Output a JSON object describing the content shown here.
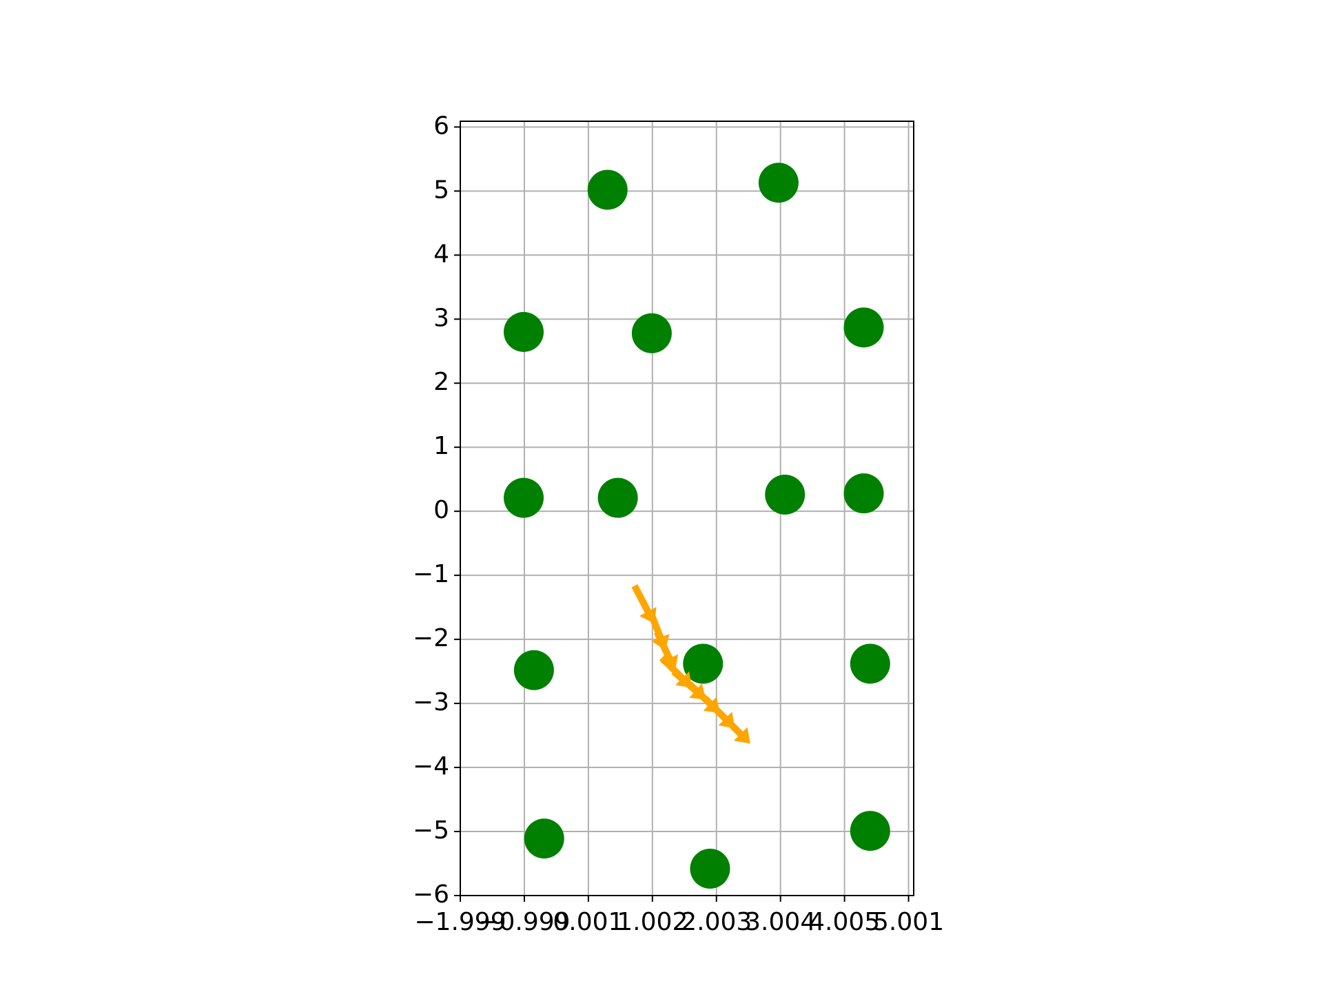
{
  "chart_data": {
    "type": "scatter",
    "series": [
      {
        "color": "#008000",
        "marker": "circle",
        "x": [
          0.3,
          2.97,
          -1.01,
          0.99,
          4.3,
          -1.01,
          0.46,
          3.07,
          4.3,
          -0.85,
          1.79,
          4.4,
          -0.69,
          4.4,
          1.9
        ],
        "y": [
          5.02,
          5.13,
          2.8,
          2.78,
          2.87,
          0.21,
          0.21,
          0.26,
          0.28,
          -2.48,
          -2.38,
          -2.38,
          -5.11,
          -4.99,
          -5.58
        ]
      },
      {
        "color": "#ffa500",
        "marker": "arrow",
        "x": [
          0.86,
          1.07,
          1.2,
          1.36,
          1.56,
          1.79,
          2.03,
          2.27
        ],
        "y": [
          -1.43,
          -1.83,
          -2.16,
          -2.5,
          -2.7,
          -2.9,
          -3.13,
          -3.37
        ]
      }
    ],
    "xlim": [
      -2,
      5.08
    ],
    "ylim": [
      -6,
      6.09
    ],
    "xticks": [
      {
        "value": -2,
        "label": "−1.999"
      },
      {
        "value": -1,
        "label": "−0.999"
      },
      {
        "value": 0,
        "label": "0.001"
      },
      {
        "value": 1,
        "label": "1.002"
      },
      {
        "value": 2,
        "label": "2.003"
      },
      {
        "value": 3,
        "label": "3.004"
      },
      {
        "value": 4,
        "label": "4.005"
      },
      {
        "value": 5,
        "label": "5.001"
      }
    ],
    "yticks": [
      {
        "value": -6,
        "label": "−6"
      },
      {
        "value": -5,
        "label": "−5"
      },
      {
        "value": -4,
        "label": "−4"
      },
      {
        "value": -3,
        "label": "−3"
      },
      {
        "value": -2,
        "label": "−2"
      },
      {
        "value": -1,
        "label": "−1"
      },
      0,
      1,
      2,
      3,
      4,
      5,
      6
    ],
    "grid": true
  }
}
